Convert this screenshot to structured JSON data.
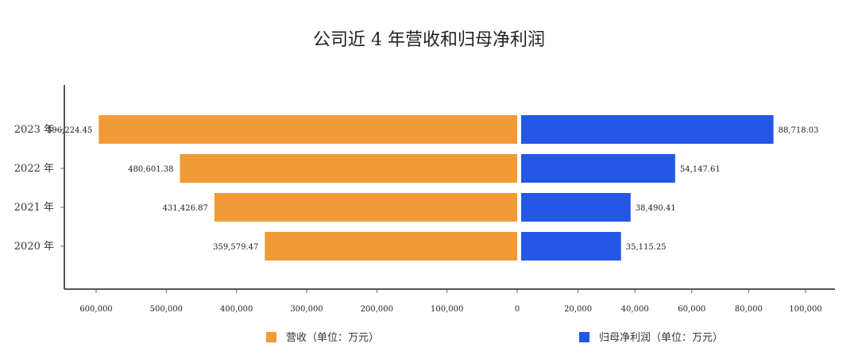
{
  "chart_data": {
    "type": "bar",
    "orientation": "horizontal-butterfly",
    "title": "公司近 4 年营收和归母净利润",
    "categories": [
      "2023 年",
      "2022 年",
      "2021 年",
      "2020 年"
    ],
    "series": [
      {
        "name": "营收（单位：万元）",
        "side": "left",
        "color": "#F09A38",
        "values": [
          596224.45,
          480601.38,
          431426.87,
          359579.47
        ],
        "labels": [
          "596,224.45",
          "480,601.38",
          "431,426.87",
          "359,579.47"
        ],
        "axis_max": 600000,
        "ticks": [
          600000,
          500000,
          400000,
          300000,
          200000,
          100000,
          0
        ],
        "tick_labels": [
          "600,000",
          "500,000",
          "400,000",
          "300,000",
          "200,000",
          "100,000",
          "0"
        ]
      },
      {
        "name": "归母净利润（单位：万元）",
        "side": "right",
        "color": "#2457E6",
        "values": [
          88718.03,
          54147.61,
          38490.41,
          35115.25
        ],
        "labels": [
          "88,718.03",
          "54,147.61",
          "38,490.41",
          "35,115.25"
        ],
        "axis_max": 100000,
        "ticks": [
          20000,
          40000,
          60000,
          80000,
          100000
        ],
        "tick_labels": [
          "20,000",
          "40,000",
          "60,000",
          "80,000",
          "100,000"
        ]
      }
    ],
    "legend": {
      "position": "bottom",
      "items": [
        "营收（单位：万元）",
        "归母净利润（单位：万元）"
      ]
    },
    "grid": false
  }
}
